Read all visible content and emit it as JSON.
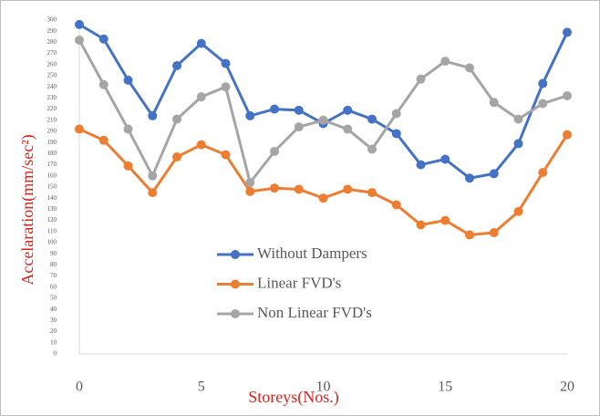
{
  "chart_data": {
    "type": "line",
    "xlabel": "Storeys(Nos.)",
    "ylabel": "Accelaration(mm/sec²)",
    "x": [
      0,
      1,
      2,
      3,
      4,
      5,
      6,
      7,
      8,
      9,
      10,
      11,
      12,
      13,
      14,
      15,
      16,
      17,
      18,
      19,
      20
    ],
    "xlim": [
      0,
      20
    ],
    "xticks": [
      0,
      5,
      10,
      15,
      20
    ],
    "ylim": [
      0,
      300
    ],
    "yticks": [
      0,
      10,
      20,
      30,
      40,
      50,
      60,
      70,
      80,
      90,
      100,
      110,
      120,
      130,
      140,
      150,
      160,
      170,
      180,
      190,
      200,
      210,
      220,
      230,
      240,
      250,
      260,
      270,
      280,
      290,
      300
    ],
    "grid": false,
    "legend": "center",
    "series": [
      {
        "name": "Without Dampers",
        "color": "#4472c4",
        "values": [
          296,
          283,
          246,
          214,
          259,
          279,
          261,
          214,
          220,
          219,
          207,
          219,
          211,
          198,
          170,
          175,
          158,
          162,
          189,
          243,
          289
        ]
      },
      {
        "name": "Linear FVD's",
        "color": "#ed7d31",
        "values": [
          202,
          192,
          169,
          145,
          177,
          188,
          179,
          146,
          149,
          148,
          140,
          148,
          145,
          134,
          116,
          120,
          107,
          109,
          128,
          163,
          197
        ]
      },
      {
        "name": "Non Linear FVD's",
        "color": "#a5a5a5",
        "values": [
          282,
          242,
          202,
          160,
          211,
          231,
          240,
          154,
          182,
          204,
          210,
          202,
          184,
          216,
          247,
          263,
          257,
          226,
          211,
          225,
          232
        ]
      }
    ]
  }
}
